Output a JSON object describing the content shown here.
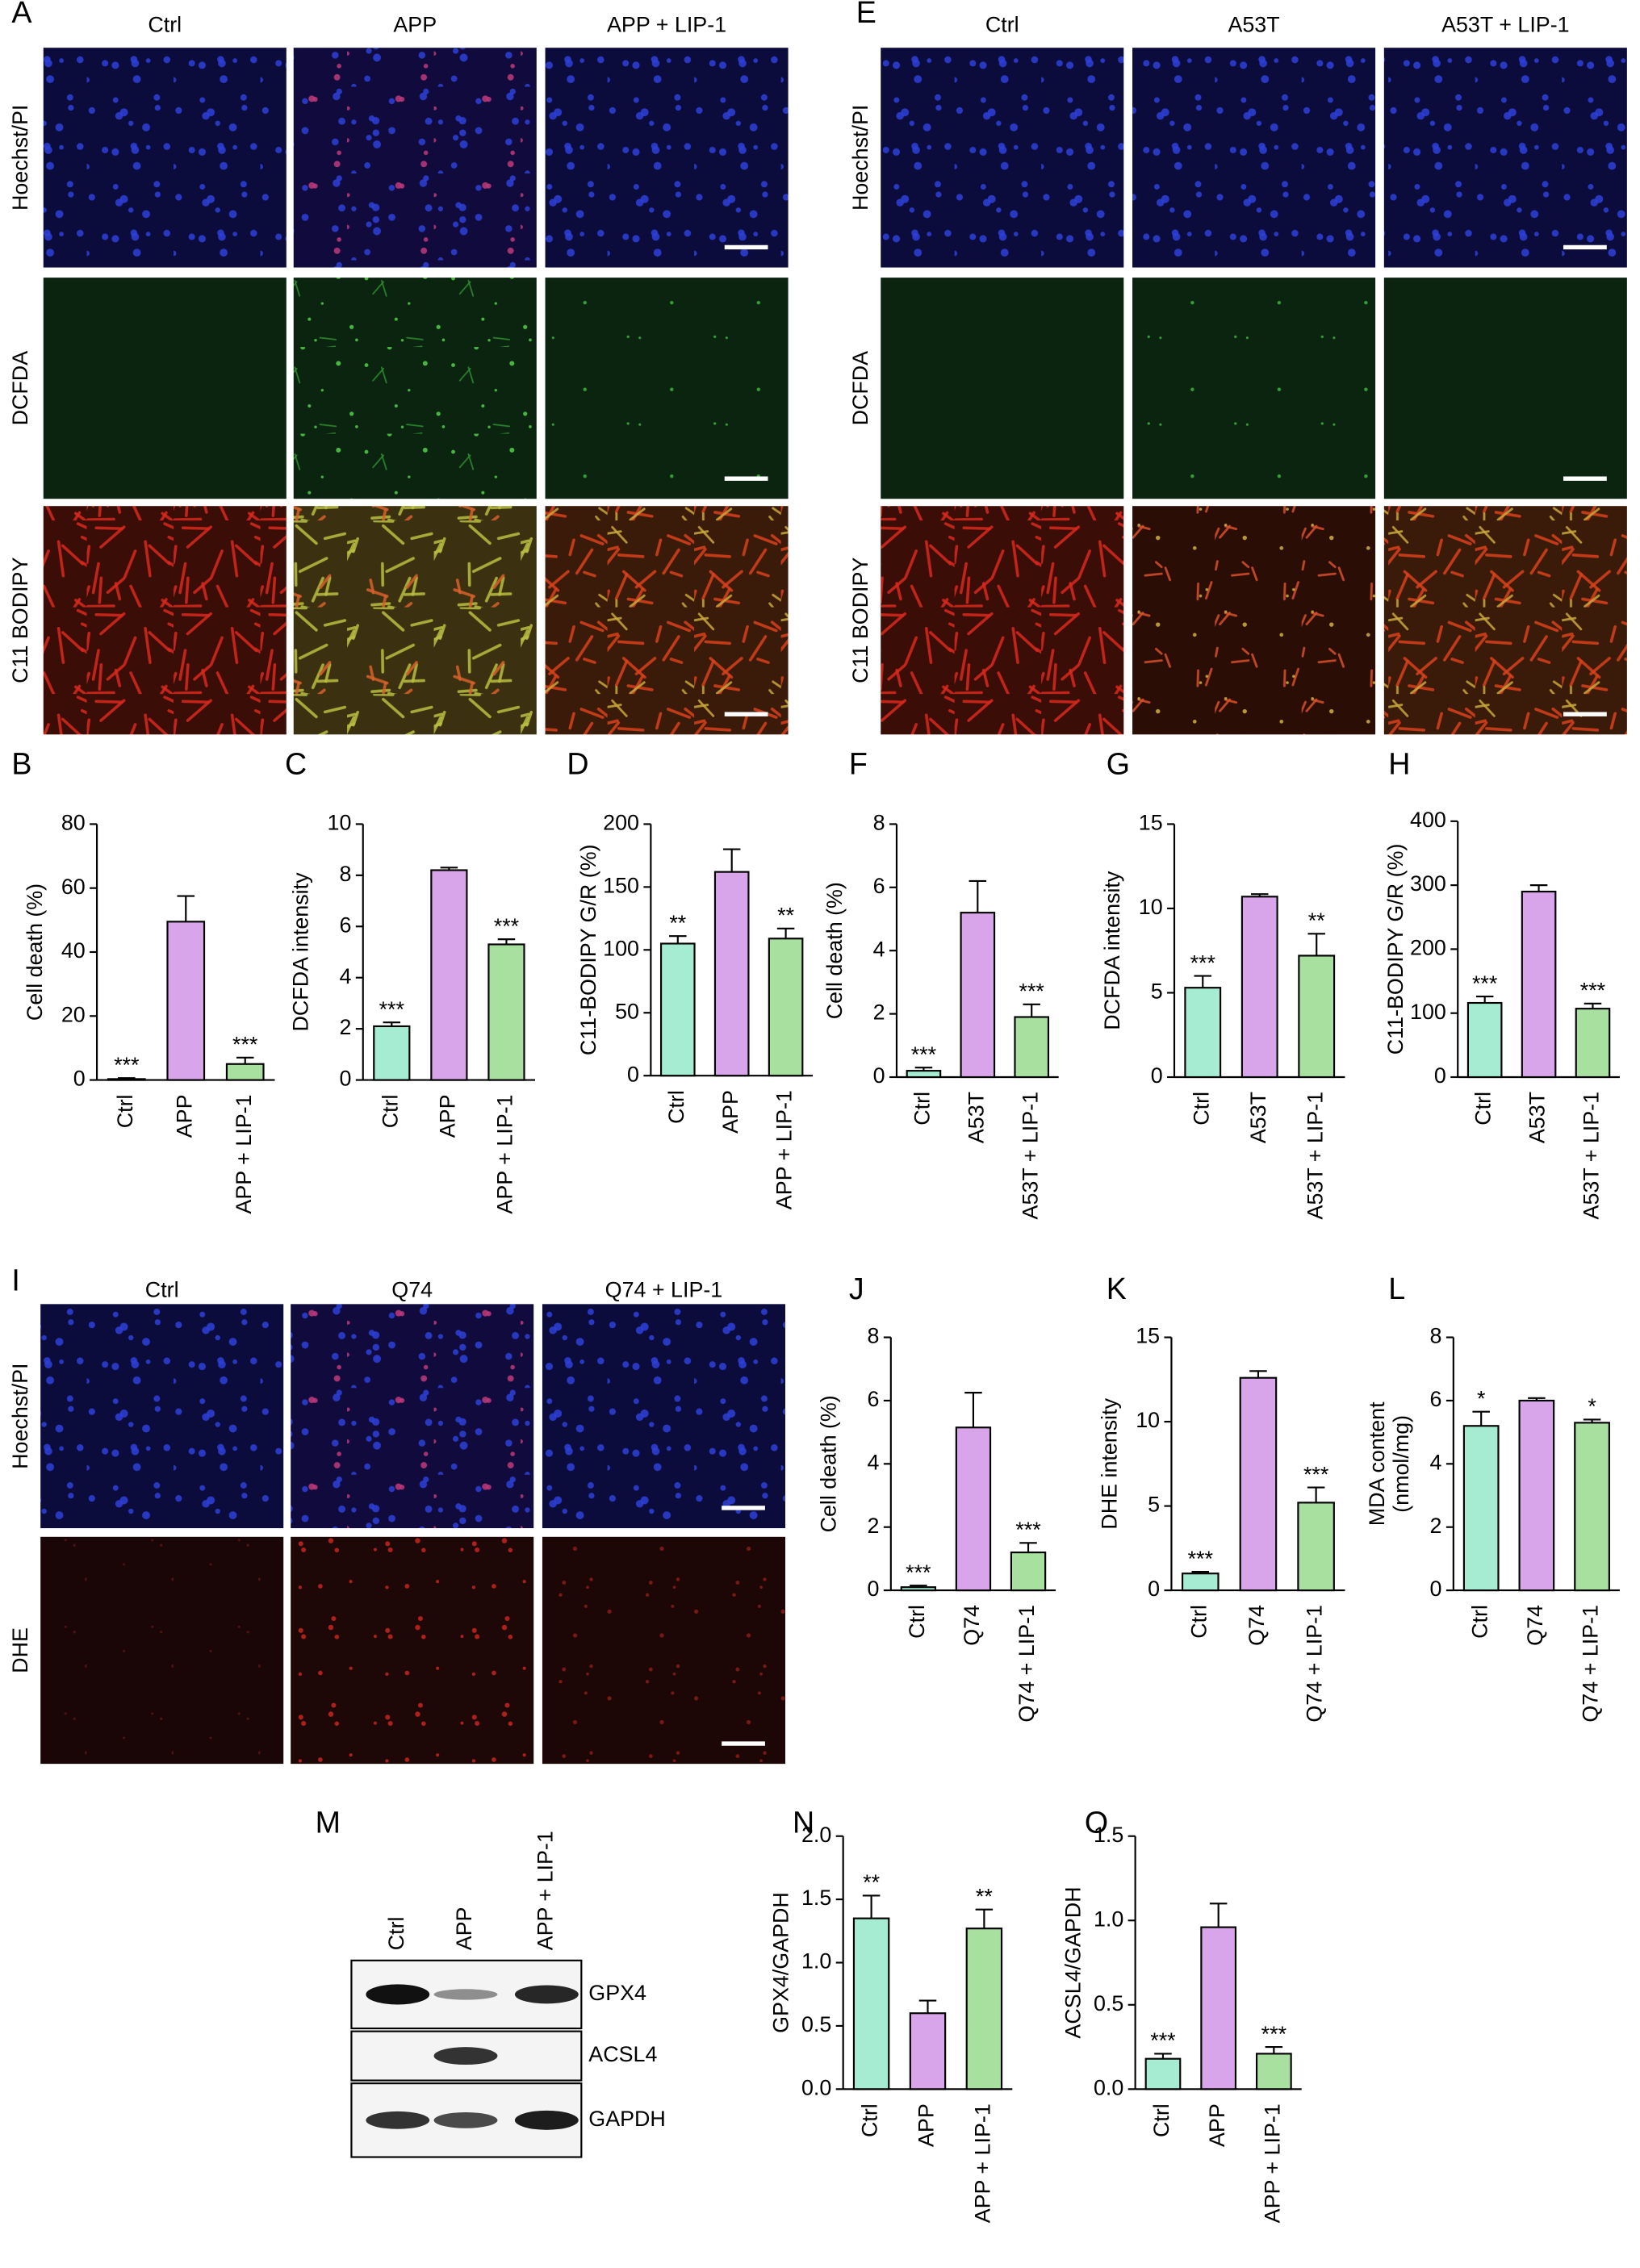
{
  "image_panels": [
    {
      "panel": "A",
      "columns": [
        "Ctrl",
        "APP",
        "APP + LIP-1"
      ],
      "rows": [
        "Hoechst/PI",
        "DCFDA",
        "C11 BODIPY"
      ]
    },
    {
      "panel": "E",
      "columns": [
        "Ctrl",
        "A53T",
        "A53T + LIP-1"
      ],
      "rows": [
        "Hoechst/PI",
        "DCFDA",
        "C11 BODIPY"
      ]
    },
    {
      "panel": "I",
      "columns": [
        "Ctrl",
        "Q74",
        "Q74 + LIP-1"
      ],
      "rows": [
        "Hoechst/PI",
        "DHE"
      ]
    }
  ],
  "western_blot": {
    "panel": "M",
    "lanes": [
      "Ctrl",
      "APP",
      "APP + LIP-1"
    ],
    "bands": [
      "GPX4",
      "ACSL4",
      "GAPDH"
    ]
  },
  "chart_data": [
    {
      "type": "bar",
      "panel": "B",
      "ylabel": "Cell death (%)",
      "categories": [
        "Ctrl",
        "APP",
        "APP + LIP-1"
      ],
      "values": [
        0.3,
        49.5,
        5
      ],
      "errors": [
        0.3,
        8,
        2
      ],
      "significance": [
        "***",
        null,
        "***"
      ],
      "colors": [
        "#a6ecd2",
        "#d9a5ea",
        "#a8e0a0"
      ],
      "ylim": [
        0,
        80
      ],
      "yticks": [
        0,
        20,
        40,
        60,
        80
      ]
    },
    {
      "type": "bar",
      "panel": "C",
      "ylabel": "DCFDA intensity",
      "categories": [
        "Ctrl",
        "APP",
        "APP + LIP-1"
      ],
      "values": [
        2.1,
        8.2,
        5.3
      ],
      "errors": [
        0.15,
        0.1,
        0.2
      ],
      "significance": [
        "***",
        null,
        "***"
      ],
      "colors": [
        "#a6ecd2",
        "#d9a5ea",
        "#a8e0a0"
      ],
      "ylim": [
        0,
        10
      ],
      "yticks": [
        0,
        2,
        4,
        6,
        8,
        10
      ]
    },
    {
      "type": "bar",
      "panel": "D",
      "ylabel": "C11-BODIPY G/R (%)",
      "categories": [
        "Ctrl",
        "APP",
        "APP + LIP-1"
      ],
      "values": [
        105,
        162,
        109
      ],
      "errors": [
        6,
        18,
        8
      ],
      "significance": [
        "**",
        null,
        "**"
      ],
      "colors": [
        "#a6ecd2",
        "#d9a5ea",
        "#a8e0a0"
      ],
      "ylim": [
        0,
        200
      ],
      "yticks": [
        0,
        50,
        100,
        150,
        200
      ]
    },
    {
      "type": "bar",
      "panel": "F",
      "ylabel": "Cell death (%)",
      "categories": [
        "Ctrl",
        "A53T",
        "A53T + LIP-1"
      ],
      "values": [
        0.2,
        5.2,
        1.9
      ],
      "errors": [
        0.1,
        1.0,
        0.4
      ],
      "significance": [
        "***",
        null,
        "***"
      ],
      "colors": [
        "#a6ecd2",
        "#d9a5ea",
        "#a8e0a0"
      ],
      "ylim": [
        0,
        8
      ],
      "yticks": [
        0,
        2,
        4,
        6,
        8
      ]
    },
    {
      "type": "bar",
      "panel": "G",
      "ylabel": "DCFDA intensity",
      "categories": [
        "Ctrl",
        "A53T",
        "A53T + LIP-1"
      ],
      "values": [
        5.3,
        10.7,
        7.2
      ],
      "errors": [
        0.7,
        0.15,
        1.3
      ],
      "significance": [
        "***",
        null,
        "**"
      ],
      "colors": [
        "#a6ecd2",
        "#d9a5ea",
        "#a8e0a0"
      ],
      "ylim": [
        0,
        15
      ],
      "yticks": [
        0,
        5,
        10,
        15
      ]
    },
    {
      "type": "bar",
      "panel": "H",
      "ylabel": "C11-BODIPY G/R (%)",
      "categories": [
        "Ctrl",
        "A53T",
        "A53T + LIP-1"
      ],
      "values": [
        116,
        290,
        107
      ],
      "errors": [
        10,
        10,
        8
      ],
      "significance": [
        "***",
        null,
        "***"
      ],
      "colors": [
        "#a6ecd2",
        "#d9a5ea",
        "#a8e0a0"
      ],
      "ylim": [
        0,
        400
      ],
      "yticks": [
        0,
        100,
        200,
        300,
        400
      ]
    },
    {
      "type": "bar",
      "panel": "J",
      "ylabel": "Cell death (%)",
      "categories": [
        "Ctrl",
        "Q74",
        "Q74 + LIP-1"
      ],
      "values": [
        0.1,
        5.15,
        1.2
      ],
      "errors": [
        0.05,
        1.1,
        0.3
      ],
      "significance": [
        "***",
        null,
        "***"
      ],
      "colors": [
        "#a6ecd2",
        "#d9a5ea",
        "#a8e0a0"
      ],
      "ylim": [
        0,
        8
      ],
      "yticks": [
        0,
        2,
        4,
        6,
        8
      ]
    },
    {
      "type": "bar",
      "panel": "K",
      "ylabel": "DHE intensity",
      "categories": [
        "Ctrl",
        "Q74",
        "Q74 + LIP-1"
      ],
      "values": [
        1.0,
        12.6,
        5.2
      ],
      "errors": [
        0.1,
        0.4,
        0.9
      ],
      "significance": [
        "***",
        null,
        "***"
      ],
      "colors": [
        "#a6ecd2",
        "#d9a5ea",
        "#a8e0a0"
      ],
      "ylim": [
        0,
        15
      ],
      "yticks": [
        0,
        5,
        10,
        15
      ]
    },
    {
      "type": "bar",
      "panel": "L",
      "ylabel": [
        "MDA content",
        "(nmol/mg)"
      ],
      "categories": [
        "Ctrl",
        "Q74",
        "Q74 + LIP-1"
      ],
      "values": [
        5.2,
        6.0,
        5.3
      ],
      "errors": [
        0.45,
        0.08,
        0.1
      ],
      "significance": [
        "*",
        null,
        "*"
      ],
      "colors": [
        "#a6ecd2",
        "#d9a5ea",
        "#a8e0a0"
      ],
      "ylim": [
        0,
        8
      ],
      "yticks": [
        0,
        2,
        4,
        6,
        8
      ]
    },
    {
      "type": "bar",
      "panel": "N",
      "ylabel": "GPX4/GAPDH",
      "categories": [
        "Ctrl",
        "APP",
        "APP + LIP-1"
      ],
      "values": [
        1.35,
        0.6,
        1.27
      ],
      "errors": [
        0.18,
        0.1,
        0.15
      ],
      "significance": [
        "**",
        null,
        "**"
      ],
      "colors": [
        "#a6ecd2",
        "#d9a5ea",
        "#a8e0a0"
      ],
      "ylim": [
        0,
        2
      ],
      "yticks": [
        {
          "value": 0,
          "label": "0.0"
        },
        0.5,
        {
          "value": 1,
          "label": "1.0"
        },
        1.5,
        {
          "value": 2,
          "label": "2.0"
        }
      ]
    },
    {
      "type": "bar",
      "panel": "O",
      "ylabel": "ACSL4/GAPDH",
      "categories": [
        "Ctrl",
        "APP",
        "APP + LIP-1"
      ],
      "values": [
        0.18,
        0.96,
        0.21
      ],
      "errors": [
        0.03,
        0.14,
        0.04
      ],
      "significance": [
        "***",
        null,
        "***"
      ],
      "colors": [
        "#a6ecd2",
        "#d9a5ea",
        "#a8e0a0"
      ],
      "ylim": [
        0,
        1.5
      ],
      "yticks": [
        {
          "value": 0,
          "label": "0.0"
        },
        0.5,
        {
          "value": 1,
          "label": "1.0"
        },
        1.5
      ]
    }
  ]
}
